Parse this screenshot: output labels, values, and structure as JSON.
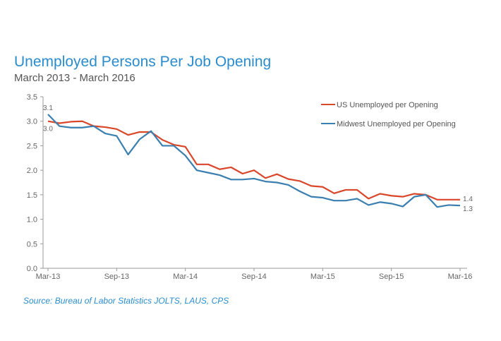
{
  "chart_data": {
    "type": "line",
    "title": "Unemployed Persons Per Job Opening",
    "subtitle": "March 2013 - March 2016",
    "source": "Source: Bureau of Labor Statistics JOLTS, LAUS, CPS",
    "xlabel": "",
    "ylabel": "",
    "ylim": [
      0,
      3.5
    ],
    "yticks": [
      "0.0",
      "0.5",
      "1.0",
      "1.5",
      "2.0",
      "2.5",
      "3.0",
      "3.5"
    ],
    "xtick_labels": [
      "Mar-13",
      "Sep-13",
      "Mar-14",
      "Sep-14",
      "Mar-15",
      "Sep-15",
      "Mar-16"
    ],
    "x": [
      "Mar-13",
      "Apr-13",
      "May-13",
      "Jun-13",
      "Jul-13",
      "Aug-13",
      "Sep-13",
      "Oct-13",
      "Nov-13",
      "Dec-13",
      "Jan-14",
      "Feb-14",
      "Mar-14",
      "Apr-14",
      "May-14",
      "Jun-14",
      "Jul-14",
      "Aug-14",
      "Sep-14",
      "Oct-14",
      "Nov-14",
      "Dec-14",
      "Jan-15",
      "Feb-15",
      "Mar-15",
      "Apr-15",
      "May-15",
      "Jun-15",
      "Jul-15",
      "Aug-15",
      "Sep-15",
      "Oct-15",
      "Nov-15",
      "Dec-15",
      "Jan-16",
      "Feb-16",
      "Mar-16"
    ],
    "grid": false,
    "legend_position": "top-right",
    "series": [
      {
        "name": "US Unemployed per Opening",
        "color": "#d9462a",
        "values": [
          3.0,
          2.96,
          2.99,
          3.0,
          2.9,
          2.88,
          2.84,
          2.72,
          2.78,
          2.78,
          2.62,
          2.52,
          2.48,
          2.12,
          2.12,
          2.02,
          2.06,
          1.93,
          2.0,
          1.84,
          1.92,
          1.82,
          1.78,
          1.68,
          1.66,
          1.53,
          1.6,
          1.6,
          1.42,
          1.52,
          1.48,
          1.46,
          1.52,
          1.5,
          1.4,
          1.4,
          1.4
        ],
        "start_label": "3.0",
        "end_label": "1.4"
      },
      {
        "name": "Midwest Unemployed per Opening",
        "color": "#3a7fb0",
        "values": [
          3.14,
          2.9,
          2.87,
          2.87,
          2.9,
          2.75,
          2.7,
          2.32,
          2.63,
          2.8,
          2.5,
          2.5,
          2.3,
          2.0,
          1.95,
          1.9,
          1.81,
          1.81,
          1.83,
          1.77,
          1.75,
          1.7,
          1.57,
          1.46,
          1.44,
          1.38,
          1.38,
          1.42,
          1.29,
          1.35,
          1.32,
          1.26,
          1.46,
          1.5,
          1.25,
          1.29,
          1.28
        ],
        "start_label": "3.1",
        "end_label": "1.3"
      }
    ]
  }
}
